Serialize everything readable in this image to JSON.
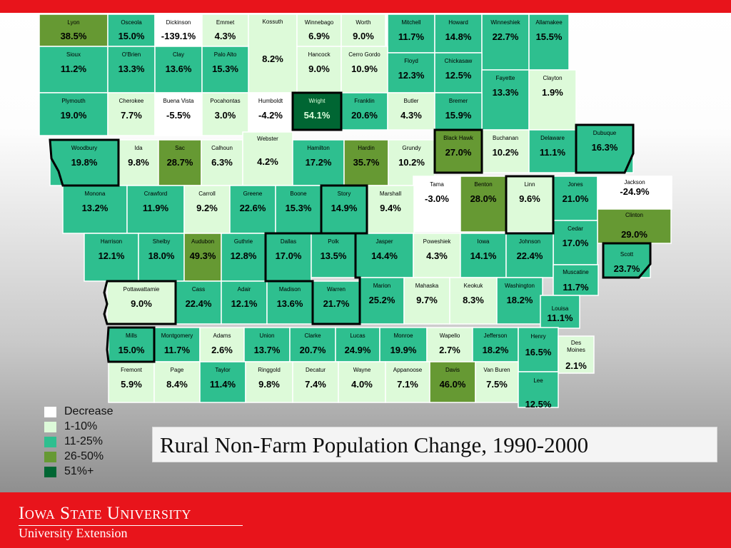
{
  "title": "Rural Non-Farm Population Change, 1990-2000",
  "footer": {
    "university": "Iowa State University",
    "unit": "University Extension"
  },
  "colors": {
    "background_top": "#ffffff",
    "background_bottom": "#8a8a8a",
    "banner": "#e8141b",
    "decrease": "#ffffff",
    "1-10%": "#ddfad9",
    "11-25%": "#2ebf8f",
    "26-50%": "#669933",
    "51%+": "#006633"
  },
  "legend": [
    {
      "label": "Decrease",
      "color": "#ffffff"
    },
    {
      "label": "1-10%",
      "color": "#ddfad9"
    },
    {
      "label": "11-25%",
      "color": "#2ebf8f"
    },
    {
      "label": "26-50%",
      "color": "#669933"
    },
    {
      "label": "51%+",
      "color": "#006633"
    }
  ],
  "counties": [
    {
      "name": "Lyon",
      "value": "38.5%",
      "cls": "26-50%"
    },
    {
      "name": "Osceola",
      "value": "15.0%",
      "cls": "11-25%"
    },
    {
      "name": "Dickinson",
      "value": "-139.1%",
      "cls": "decrease"
    },
    {
      "name": "Emmet",
      "value": "4.3%",
      "cls": "1-10%"
    },
    {
      "name": "Kossuth",
      "value": "8.2%",
      "cls": "1-10%"
    },
    {
      "name": "Winnebago",
      "value": "6.9%",
      "cls": "1-10%"
    },
    {
      "name": "Worth",
      "value": "9.0%",
      "cls": "1-10%"
    },
    {
      "name": "Mitchell",
      "value": "11.7%",
      "cls": "11-25%"
    },
    {
      "name": "Howard",
      "value": "14.8%",
      "cls": "11-25%"
    },
    {
      "name": "Winneshiek",
      "value": "22.7%",
      "cls": "11-25%"
    },
    {
      "name": "Allamakee",
      "value": "15.5%",
      "cls": "11-25%"
    },
    {
      "name": "Sioux",
      "value": "11.2%",
      "cls": "11-25%"
    },
    {
      "name": "O'Brien",
      "value": "13.3%",
      "cls": "11-25%"
    },
    {
      "name": "Clay",
      "value": "13.6%",
      "cls": "11-25%"
    },
    {
      "name": "Palo Alto",
      "value": "15.3%",
      "cls": "11-25%"
    },
    {
      "name": "Hancock",
      "value": "9.0%",
      "cls": "1-10%"
    },
    {
      "name": "Cerro Gordo",
      "value": "10.9%",
      "cls": "1-10%"
    },
    {
      "name": "Floyd",
      "value": "12.3%",
      "cls": "11-25%"
    },
    {
      "name": "Chickasaw",
      "value": "12.5%",
      "cls": "11-25%"
    },
    {
      "name": "Fayette",
      "value": "13.3%",
      "cls": "11-25%"
    },
    {
      "name": "Clayton",
      "value": "1.9%",
      "cls": "1-10%"
    },
    {
      "name": "Plymouth",
      "value": "19.0%",
      "cls": "11-25%"
    },
    {
      "name": "Cherokee",
      "value": "7.7%",
      "cls": "1-10%"
    },
    {
      "name": "Buena Vista",
      "value": "-5.5%",
      "cls": "decrease"
    },
    {
      "name": "Pocahontas",
      "value": "3.0%",
      "cls": "1-10%"
    },
    {
      "name": "Humboldt",
      "value": "-4.2%",
      "cls": "decrease"
    },
    {
      "name": "Wright",
      "value": "54.1%",
      "cls": "51%+"
    },
    {
      "name": "Franklin",
      "value": "20.6%",
      "cls": "11-25%"
    },
    {
      "name": "Butler",
      "value": "4.3%",
      "cls": "1-10%"
    },
    {
      "name": "Bremer",
      "value": "15.9%",
      "cls": "11-25%"
    },
    {
      "name": "Black Hawk",
      "value": "27.0%",
      "cls": "26-50%"
    },
    {
      "name": "Buchanan",
      "value": "10.2%",
      "cls": "1-10%"
    },
    {
      "name": "Delaware",
      "value": "11.1%",
      "cls": "11-25%"
    },
    {
      "name": "Dubuque",
      "value": "16.3%",
      "cls": "11-25%"
    },
    {
      "name": "Woodbury",
      "value": "19.8%",
      "cls": "11-25%"
    },
    {
      "name": "Ida",
      "value": "9.8%",
      "cls": "1-10%"
    },
    {
      "name": "Sac",
      "value": "28.7%",
      "cls": "26-50%"
    },
    {
      "name": "Calhoun",
      "value": "6.3%",
      "cls": "1-10%"
    },
    {
      "name": "Webster",
      "value": "4.2%",
      "cls": "1-10%"
    },
    {
      "name": "Hamilton",
      "value": "17.2%",
      "cls": "11-25%"
    },
    {
      "name": "Hardin",
      "value": "35.7%",
      "cls": "26-50%"
    },
    {
      "name": "Grundy",
      "value": "10.2%",
      "cls": "1-10%"
    },
    {
      "name": "Tama",
      "value": "-3.0%",
      "cls": "decrease"
    },
    {
      "name": "Benton",
      "value": "28.0%",
      "cls": "26-50%"
    },
    {
      "name": "Linn",
      "value": "9.6%",
      "cls": "1-10%"
    },
    {
      "name": "Jones",
      "value": "21.0%",
      "cls": "11-25%"
    },
    {
      "name": "Jackson",
      "value": "-24.9%",
      "cls": "decrease"
    },
    {
      "name": "Monona",
      "value": "13.2%",
      "cls": "11-25%"
    },
    {
      "name": "Crawford",
      "value": "11.9%",
      "cls": "11-25%"
    },
    {
      "name": "Carroll",
      "value": "9.2%",
      "cls": "1-10%"
    },
    {
      "name": "Greene",
      "value": "22.6%",
      "cls": "11-25%"
    },
    {
      "name": "Boone",
      "value": "15.3%",
      "cls": "11-25%"
    },
    {
      "name": "Story",
      "value": "14.9%",
      "cls": "11-25%"
    },
    {
      "name": "Marshall",
      "value": "9.4%",
      "cls": "1-10%"
    },
    {
      "name": "Clinton",
      "value": "29.0%",
      "cls": "26-50%"
    },
    {
      "name": "Cedar",
      "value": "17.0%",
      "cls": "11-25%"
    },
    {
      "name": "Harrison",
      "value": "12.1%",
      "cls": "11-25%"
    },
    {
      "name": "Shelby",
      "value": "18.0%",
      "cls": "11-25%"
    },
    {
      "name": "Audubon",
      "value": "49.3%",
      "cls": "26-50%"
    },
    {
      "name": "Guthrie",
      "value": "12.8%",
      "cls": "11-25%"
    },
    {
      "name": "Dallas",
      "value": "17.0%",
      "cls": "11-25%"
    },
    {
      "name": "Polk",
      "value": "13.5%",
      "cls": "11-25%"
    },
    {
      "name": "Jasper",
      "value": "14.4%",
      "cls": "11-25%"
    },
    {
      "name": "Poweshiek",
      "value": "4.3%",
      "cls": "1-10%"
    },
    {
      "name": "Iowa",
      "value": "14.1%",
      "cls": "11-25%"
    },
    {
      "name": "Johnson",
      "value": "22.4%",
      "cls": "11-25%"
    },
    {
      "name": "Scott",
      "value": "23.7%",
      "cls": "11-25%"
    },
    {
      "name": "Muscatine",
      "value": "11.7%",
      "cls": "11-25%"
    },
    {
      "name": "Pottawattamie",
      "value": "9.0%",
      "cls": "1-10%"
    },
    {
      "name": "Cass",
      "value": "22.4%",
      "cls": "11-25%"
    },
    {
      "name": "Adair",
      "value": "12.1%",
      "cls": "11-25%"
    },
    {
      "name": "Madison",
      "value": "13.6%",
      "cls": "11-25%"
    },
    {
      "name": "Warren",
      "value": "21.7%",
      "cls": "11-25%"
    },
    {
      "name": "Marion",
      "value": "25.2%",
      "cls": "11-25%"
    },
    {
      "name": "Mahaska",
      "value": "9.7%",
      "cls": "1-10%"
    },
    {
      "name": "Keokuk",
      "value": "8.3%",
      "cls": "1-10%"
    },
    {
      "name": "Washington",
      "value": "18.2%",
      "cls": "11-25%"
    },
    {
      "name": "Louisa",
      "value": "11.1%",
      "cls": "11-25%"
    },
    {
      "name": "Mills",
      "value": "15.0%",
      "cls": "11-25%"
    },
    {
      "name": "Montgomery",
      "value": "11.7%",
      "cls": "11-25%"
    },
    {
      "name": "Adams",
      "value": "2.6%",
      "cls": "1-10%"
    },
    {
      "name": "Union",
      "value": "13.7%",
      "cls": "11-25%"
    },
    {
      "name": "Clarke",
      "value": "20.7%",
      "cls": "11-25%"
    },
    {
      "name": "Lucas",
      "value": "24.9%",
      "cls": "11-25%"
    },
    {
      "name": "Monroe",
      "value": "19.9%",
      "cls": "11-25%"
    },
    {
      "name": "Wapello",
      "value": "2.7%",
      "cls": "1-10%"
    },
    {
      "name": "Jefferson",
      "value": "18.2%",
      "cls": "11-25%"
    },
    {
      "name": "Henry",
      "value": "16.5%",
      "cls": "11-25%"
    },
    {
      "name": "Des Moines",
      "value": "2.1%",
      "cls": "1-10%"
    },
    {
      "name": "Fremont",
      "value": "5.9%",
      "cls": "1-10%"
    },
    {
      "name": "Page",
      "value": "8.4%",
      "cls": "1-10%"
    },
    {
      "name": "Taylor",
      "value": "11.4%",
      "cls": "11-25%"
    },
    {
      "name": "Ringgold",
      "value": "9.8%",
      "cls": "1-10%"
    },
    {
      "name": "Decatur",
      "value": "7.4%",
      "cls": "1-10%"
    },
    {
      "name": "Wayne",
      "value": "4.0%",
      "cls": "1-10%"
    },
    {
      "name": "Appanoose",
      "value": "7.1%",
      "cls": "1-10%"
    },
    {
      "name": "Davis",
      "value": "46.0%",
      "cls": "26-50%"
    },
    {
      "name": "Van Buren",
      "value": "7.5%",
      "cls": "1-10%"
    },
    {
      "name": "Lee",
      "value": "12.5%",
      "cls": "11-25%"
    }
  ]
}
